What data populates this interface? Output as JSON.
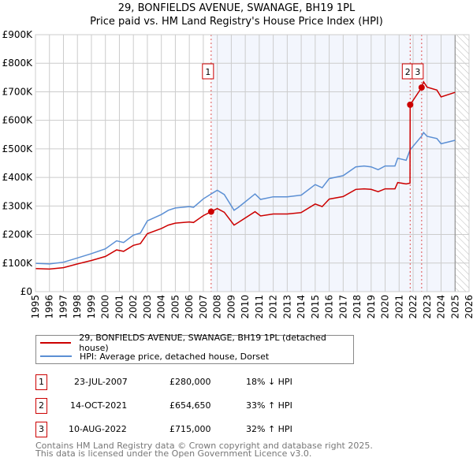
{
  "chart_data": {
    "type": "line",
    "title": "29, BONFIELDS AVENUE, SWANAGE, BH19 1PL",
    "subtitle": "Price paid vs. HM Land Registry's House Price Index (HPI)",
    "xlim": [
      1995,
      2026
    ],
    "ylim": [
      0,
      900000
    ],
    "x_ticks": [
      "1995",
      "1996",
      "1997",
      "1998",
      "1999",
      "2000",
      "2001",
      "2002",
      "2003",
      "2004",
      "2005",
      "2006",
      "2007",
      "2008",
      "2009",
      "2010",
      "2011",
      "2012",
      "2013",
      "2014",
      "2015",
      "2016",
      "2017",
      "2018",
      "2019",
      "2020",
      "2021",
      "2022",
      "2023",
      "2024",
      "2025",
      "2026"
    ],
    "y_ticks": [
      {
        "v": 0,
        "label": "£0"
      },
      {
        "v": 100000,
        "label": "£100K"
      },
      {
        "v": 200000,
        "label": "£200K"
      },
      {
        "v": 300000,
        "label": "£300K"
      },
      {
        "v": 400000,
        "label": "£400K"
      },
      {
        "v": 500000,
        "label": "£500K"
      },
      {
        "v": 600000,
        "label": "£600K"
      },
      {
        "v": 700000,
        "label": "£700K"
      },
      {
        "v": 800000,
        "label": "£800K"
      },
      {
        "v": 900000,
        "label": "£900K"
      }
    ],
    "grid": true,
    "shaded_period": [
      2007.56,
      2025.0
    ],
    "future_hatch_from": 2025.0,
    "series": [
      {
        "name": "29, BONFIELDS AVENUE, SWANAGE, BH19 1PL (detached house)",
        "color": "#cc0000",
        "x": [
          1995,
          1996,
          1997,
          1998,
          1999,
          2000,
          2000.8,
          2001.3,
          2002,
          2002.5,
          2003,
          2004,
          2004.5,
          2005,
          2006,
          2006.3,
          2007,
          2007.56,
          2008,
          2008.5,
          2009.2,
          2009.5,
          2010.7,
          2011.1,
          2012,
          2013,
          2014,
          2015,
          2015.5,
          2016,
          2017,
          2017.9,
          2018.5,
          2019,
          2019.5,
          2020,
          2020.7,
          2020.9,
          2021.5,
          2021.78,
          2021.79,
          2022.61,
          2022.75,
          2023,
          2023.7,
          2024,
          2025
        ],
        "y": [
          81000,
          79000,
          84000,
          97000,
          109000,
          123000,
          146000,
          141000,
          162000,
          168000,
          203000,
          221000,
          233000,
          240000,
          244000,
          242000,
          266000,
          280000,
          291000,
          278000,
          233000,
          242000,
          280000,
          265000,
          272000,
          272000,
          277000,
          307000,
          298000,
          324000,
          333000,
          358000,
          360000,
          358000,
          350000,
          360000,
          360000,
          382000,
          377000,
          380000,
          654650,
          715000,
          735000,
          716000,
          706000,
          682000,
          698000
        ]
      },
      {
        "name": "HPI: Average price, detached house, Dorset",
        "color": "#5b8fd4",
        "x": [
          1995,
          1996,
          1997,
          1998,
          1999,
          2000,
          2000.8,
          2001.3,
          2002,
          2002.5,
          2003,
          2004,
          2004.5,
          2005,
          2006,
          2006.3,
          2007,
          2007.56,
          2008,
          2008.5,
          2009.2,
          2009.5,
          2010.7,
          2011.1,
          2012,
          2013,
          2014,
          2015,
          2015.5,
          2016,
          2017,
          2017.9,
          2018.5,
          2019,
          2019.5,
          2020,
          2020.7,
          2020.9,
          2021.5,
          2021.79,
          2022.61,
          2022.75,
          2023,
          2023.7,
          2024,
          2025
        ],
        "y": [
          99000,
          97000,
          103000,
          118000,
          133000,
          150000,
          178000,
          172000,
          198000,
          205000,
          248000,
          270000,
          285000,
          293000,
          298000,
          295000,
          325000,
          342000,
          355000,
          340000,
          285000,
          295000,
          342000,
          323000,
          332000,
          332000,
          338000,
          375000,
          364000,
          396000,
          406000,
          437000,
          440000,
          437000,
          427000,
          440000,
          440000,
          467000,
          460000,
          497000,
          545000,
          557000,
          544000,
          536000,
          518000,
          530000
        ]
      }
    ],
    "sales": [
      {
        "n": "1",
        "x": 2007.56,
        "y": 280000,
        "date": "23-JUL-2007",
        "price": "£280,000",
        "hpi": "18% ↓ HPI"
      },
      {
        "n": "2",
        "x": 2021.79,
        "y": 654650,
        "date": "14-OCT-2021",
        "price": "£654,650",
        "hpi": "33% ↑ HPI"
      },
      {
        "n": "3",
        "x": 2022.61,
        "y": 715000,
        "date": "10-AUG-2022",
        "price": "£715,000",
        "hpi": "32% ↑ HPI"
      }
    ]
  },
  "legend": {
    "red": "29, BONFIELDS AVENUE, SWANAGE, BH19 1PL (detached house)",
    "blue": "HPI: Average price, detached house, Dorset"
  },
  "footer": {
    "line1": "Contains HM Land Registry data © Crown copyright and database right 2025.",
    "line2": "This data is licensed under the Open Government Licence v3.0."
  }
}
